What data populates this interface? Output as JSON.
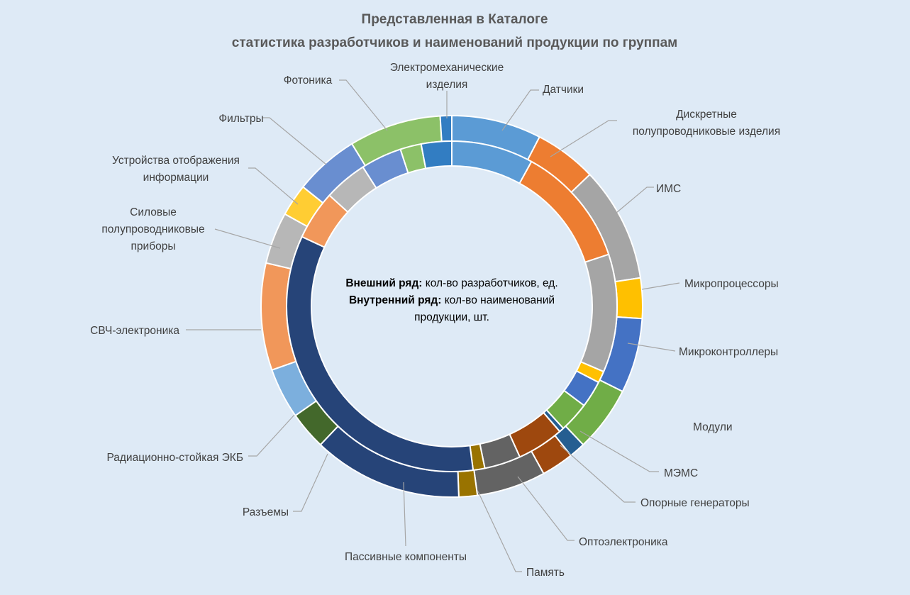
{
  "chart_data": {
    "type": "pie",
    "subtype": "doughnut",
    "title": "Представленная в Каталоге статистика разработчиков и наименований продукции по группам",
    "title_lines": [
      "Представленная в Каталоге",
      "статистика разработчиков и наименований продукции по группам"
    ],
    "center_note": {
      "line1_bold": "Внешний ряд:",
      "line1_rest": " кол-во разработчиков, ед.",
      "line2_bold": "Внутренний ряд:",
      "line2_rest": " кол-во наименований",
      "line3": "продукции, шт."
    },
    "categories": [
      {
        "name": "Датчики",
        "label_lines": [
          "Датчики"
        ],
        "color": "#5b9bd5"
      },
      {
        "name": "Дискретные полупроводниковые изделия",
        "label_lines": [
          "Дискретные",
          "полупроводниковые изделия"
        ],
        "color": "#ed7d31"
      },
      {
        "name": "ИМС",
        "label_lines": [
          "ИМС"
        ],
        "color": "#a5a5a5"
      },
      {
        "name": "Микропроцессоры",
        "label_lines": [
          "Микропроцессоры"
        ],
        "color": "#ffc000"
      },
      {
        "name": "Микроконтроллеры",
        "label_lines": [
          "Микроконтроллеры"
        ],
        "color": "#4472c4"
      },
      {
        "name": "Модули",
        "label_lines": [
          "Модули"
        ],
        "color": "#70ad47"
      },
      {
        "name": "МЭМС",
        "label_lines": [
          "МЭМС"
        ],
        "color": "#255e91"
      },
      {
        "name": "Опорные генераторы",
        "label_lines": [
          "Опорные генераторы"
        ],
        "color": "#9e480e"
      },
      {
        "name": "Оптоэлектроника",
        "label_lines": [
          "Оптоэлектроника"
        ],
        "color": "#636363"
      },
      {
        "name": "Память",
        "label_lines": [
          "Память"
        ],
        "color": "#997300"
      },
      {
        "name": "Пассивные компоненты",
        "label_lines": [
          "Пассивные компоненты"
        ],
        "color": "#264478"
      },
      {
        "name": "Разъемы",
        "label_lines": [
          "Разъемы"
        ],
        "color": "#43682b"
      },
      {
        "name": "Радиационно-стойкая ЭКБ",
        "label_lines": [
          "Радиационно-стойкая ЭКБ"
        ],
        "color": "#7cafdd"
      },
      {
        "name": "СВЧ-электроника",
        "label_lines": [
          "СВЧ-электроника"
        ],
        "color": "#f1975a"
      },
      {
        "name": "Силовые полупроводниковые приборы",
        "label_lines": [
          "Силовые",
          "полупроводниковые",
          "приборы"
        ],
        "color": "#b7b7b7"
      },
      {
        "name": "Устройства отображения информации",
        "label_lines": [
          "Устройства отображения",
          "информации"
        ],
        "color": "#ffcd33"
      },
      {
        "name": "Фильтры",
        "label_lines": [
          "Фильтры"
        ],
        "color": "#698ed0"
      },
      {
        "name": "Фотоника",
        "label_lines": [
          "Фотоника"
        ],
        "color": "#8cc168"
      },
      {
        "name": "Электромеханические изделия",
        "label_lines": [
          "Электромеханические",
          "изделия"
        ],
        "color": "#327dc2"
      }
    ],
    "series": [
      {
        "name": "Внешний ряд",
        "values": [
          7.8,
          5.4,
          10.0,
          3.5,
          6.5,
          5.7,
          1.4,
          2.8,
          6.0,
          1.6,
          13.0,
          3.3,
          4.4,
          9.3,
          4.5,
          2.8,
          5.6,
          8.0,
          1.0
        ]
      },
      {
        "name": "Внутренний ряд",
        "values": [
          7.0,
          10.4,
          10.1,
          1.0,
          2.3,
          2.6,
          0.4,
          4.0,
          3.1,
          1.0,
          29.7,
          0.0,
          0.0,
          4.2,
          3.7,
          0.0,
          3.5,
          1.8,
          2.6
        ]
      }
    ]
  }
}
